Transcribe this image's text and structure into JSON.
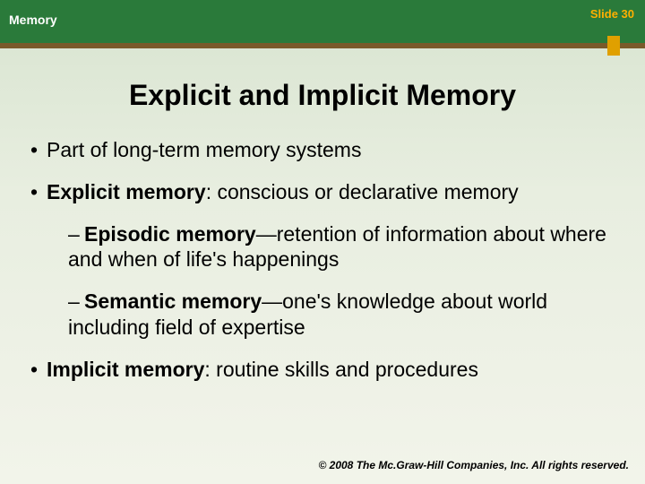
{
  "header": {
    "topic": "Memory",
    "slide_label": "Slide 30",
    "bar_color": "#2a7a3a",
    "rule_color": "#7a5a2a",
    "tick_color": "#e0a000",
    "text_color": "#ffffff",
    "slide_label_color": "#ffb000"
  },
  "title": {
    "text": "Explicit and Implicit Memory",
    "fontsize": 32,
    "color": "#000000"
  },
  "bullets": {
    "b1": "Part of long-term memory systems",
    "b2_bold": "Explicit memory",
    "b2_rest": ": conscious or declarative memory",
    "b2a_bold": "Episodic memory",
    "b2a_rest": "—retention of information about where and when of life's happenings",
    "b2b_bold": "Semantic memory",
    "b2b_rest": "—one's knowledge about world including field of expertise",
    "b3_bold": "Implicit memory",
    "b3_rest": ": routine skills and procedures"
  },
  "footer": {
    "text": "© 2008 The Mc.Graw-Hill Companies, Inc. All rights reserved.",
    "fontsize": 12
  },
  "background": {
    "gradient_top": "#d8e4d0",
    "gradient_bottom": "#f2f4ea"
  }
}
